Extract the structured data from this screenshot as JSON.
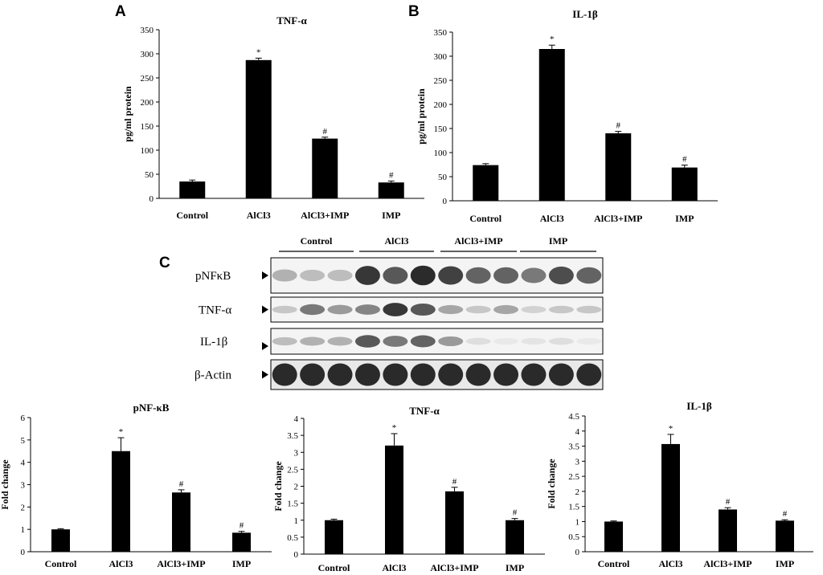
{
  "panels": {
    "a": "A",
    "b": "B",
    "c": "C"
  },
  "chart_data": [
    {
      "id": "A",
      "type": "bar",
      "title": "TNF-α",
      "ylabel": "pg/ml protein",
      "categories": [
        "Control",
        "AlCl3",
        "AlCl3+IMP",
        "IMP"
      ],
      "values": [
        35,
        287,
        124,
        33
      ],
      "errors": [
        3,
        4,
        3,
        3
      ],
      "markers": [
        "",
        "*",
        "#",
        "#"
      ],
      "ylim": [
        0,
        350
      ],
      "yticks": [
        "0",
        "50",
        "100",
        "150",
        "200",
        "250",
        "300",
        "350"
      ]
    },
    {
      "id": "B",
      "type": "bar",
      "title": "IL-1β",
      "ylabel": "pg/ml protein",
      "categories": [
        "Control",
        "AlCl3",
        "AlCl3+IMP",
        "IMP"
      ],
      "values": [
        74,
        315,
        140,
        69
      ],
      "errors": [
        3,
        8,
        4,
        5
      ],
      "markers": [
        "",
        "*",
        "#",
        "#"
      ],
      "ylim": [
        0,
        350
      ],
      "yticks": [
        "0",
        "50",
        "100",
        "150",
        "200",
        "250",
        "300",
        "350"
      ]
    },
    {
      "id": "C1",
      "type": "bar",
      "title": "pNF-κB",
      "ylabel": "Fold change",
      "categories": [
        "Control",
        "AlCl3",
        "AlCl3+IMP",
        "IMP"
      ],
      "values": [
        1.0,
        4.5,
        2.65,
        0.85
      ],
      "errors": [
        0.03,
        0.6,
        0.12,
        0.06
      ],
      "markers": [
        "",
        "*",
        "#",
        "#"
      ],
      "ylim": [
        0,
        6
      ],
      "yticks": [
        "0",
        "1",
        "2",
        "3",
        "4",
        "5",
        "6"
      ]
    },
    {
      "id": "C2",
      "type": "bar",
      "title": "TNF-α",
      "ylabel": "Fold change",
      "categories": [
        "Control",
        "AlCl3",
        "AlCl3+IMP",
        "IMP"
      ],
      "values": [
        1.0,
        3.2,
        1.85,
        1.0
      ],
      "errors": [
        0.03,
        0.35,
        0.12,
        0.05
      ],
      "markers": [
        "",
        "*",
        "#",
        "#"
      ],
      "ylim": [
        0,
        4
      ],
      "yticks": [
        "0",
        "0.5",
        "1",
        "1.5",
        "2",
        "2.5",
        "3",
        "3.5",
        "4"
      ]
    },
    {
      "id": "C3",
      "type": "bar",
      "title": "IL-1β",
      "ylabel": "Fold change",
      "categories": [
        "Control",
        "AlCl3",
        "AlCl3+IMP",
        "IMP"
      ],
      "values": [
        1.0,
        3.57,
        1.4,
        1.03
      ],
      "errors": [
        0.02,
        0.32,
        0.06,
        0.03
      ],
      "markers": [
        "",
        "*",
        "#",
        "#"
      ],
      "ylim": [
        0,
        4.5
      ],
      "yticks": [
        "0",
        "0.5",
        "1",
        "1.5",
        "2",
        "2.5",
        "3",
        "3.5",
        "4",
        "4.5"
      ]
    }
  ],
  "blot": {
    "groups": [
      "Control",
      "AlCl3",
      "AlCl3+IMP",
      "IMP"
    ],
    "rows": [
      {
        "label": "pNFκB",
        "intensities": [
          0.35,
          0.3,
          0.3,
          0.9,
          0.75,
          0.95,
          0.85,
          0.7,
          0.7,
          0.6,
          0.8,
          0.7
        ]
      },
      {
        "label": "TNF-α",
        "intensities": [
          0.25,
          0.6,
          0.45,
          0.55,
          0.9,
          0.75,
          0.4,
          0.25,
          0.4,
          0.2,
          0.25,
          0.25
        ]
      },
      {
        "label": "IL-1β",
        "intensities": [
          0.3,
          0.35,
          0.35,
          0.75,
          0.6,
          0.7,
          0.45,
          0.15,
          0.1,
          0.12,
          0.15,
          0.1
        ]
      },
      {
        "label": "β-Actin",
        "intensities": [
          0.95,
          0.95,
          0.95,
          0.95,
          0.95,
          0.95,
          0.95,
          0.95,
          0.95,
          0.95,
          0.95,
          0.95
        ]
      }
    ]
  }
}
